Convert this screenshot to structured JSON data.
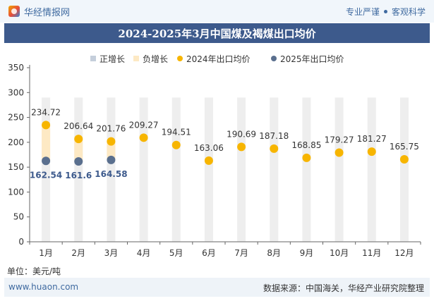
{
  "header": {
    "brand": "华经情报网",
    "tagline_left": "专业严谨",
    "tagline_right": "客观科学"
  },
  "title": "2024-2025年3月中国煤及褐煤出口均价",
  "unit_label": "单位：美元/吨",
  "footer": {
    "website": "www.huaon.com",
    "source": "数据来源：中国海关，华经产业研究院整理"
  },
  "colors": {
    "up": "#c5cedb",
    "down": "#fde9c4",
    "series_2024": "#f7b500",
    "series_2025": "#5a6f8e",
    "header_bg": "#3d5a8c",
    "bar": "#eeeeee"
  },
  "chart_data": {
    "type": "line",
    "categories": [
      "1月",
      "2月",
      "3月",
      "4月",
      "5月",
      "6月",
      "7月",
      "8月",
      "9月",
      "10月",
      "11月",
      "12月"
    ],
    "legend": [
      "正增长",
      "负增长",
      "2024年出口均价",
      "2025年出口均价"
    ],
    "series": [
      {
        "name": "2024年出口均价",
        "values": [
          234.72,
          206.64,
          201.76,
          209.27,
          194.51,
          163.06,
          190.69,
          187.18,
          168.85,
          179.27,
          181.27,
          165.75
        ]
      },
      {
        "name": "2025年出口均价",
        "values": [
          162.54,
          161.6,
          164.58,
          null,
          null,
          null,
          null,
          null,
          null,
          null,
          null,
          null
        ]
      }
    ],
    "value_labels_2024": [
      "234.72",
      "206.64",
      "201.76",
      "209.27",
      "194.51",
      "163.06",
      "190.69",
      "187.18",
      "168.85",
      "179.27",
      "181.27",
      "165.75"
    ],
    "value_labels_2025": [
      "162.54",
      "161.6",
      "164.58"
    ],
    "y_ticks": [
      "0",
      "50",
      "100",
      "150",
      "200",
      "250",
      "300",
      "350"
    ],
    "ylim": [
      0,
      350
    ],
    "background_bar_value": 290,
    "grid": false,
    "legend_position": "top"
  }
}
